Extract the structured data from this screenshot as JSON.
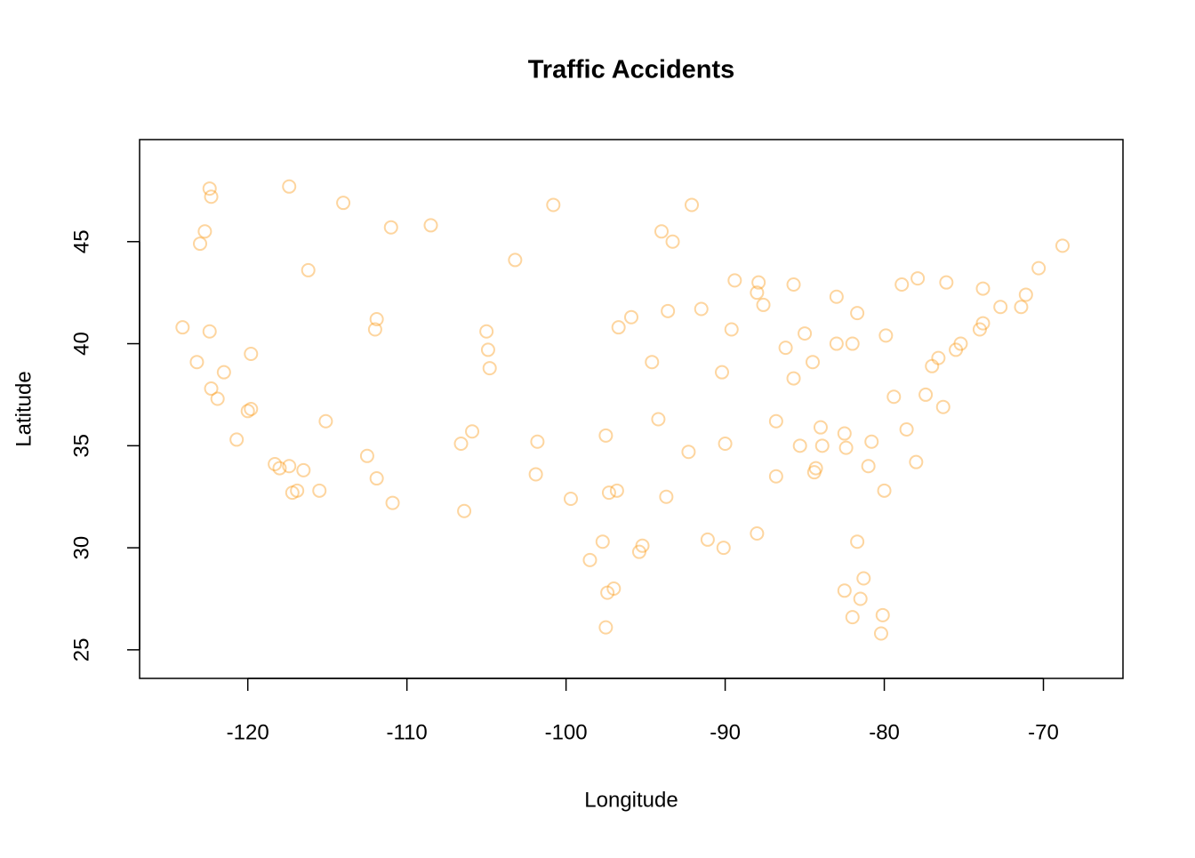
{
  "chart_data": {
    "type": "scatter",
    "title": "Traffic Accidents",
    "x_label": "Longitude",
    "y_label": "Latitude",
    "color": "rgba(250,150,15,0.4)",
    "xlim": [
      -126.8,
      -65.0
    ],
    "ylim": [
      23.6,
      50.0
    ],
    "xticks": [
      -120,
      -110,
      -100,
      -90,
      -80,
      -70
    ],
    "yticks": [
      25,
      30,
      35,
      40,
      45
    ],
    "x": [
      -122.4,
      -122.3,
      -122.7,
      -123.0,
      -122.3,
      -121.9,
      -121.5,
      -120.0,
      -119.8,
      -118.3,
      -118.0,
      -117.2,
      -117.4,
      -116.5,
      -124.1,
      -122.4,
      -123.2,
      -117.4,
      -119.8,
      -115.1,
      -111.9,
      -110.9,
      -112.0,
      -111.9,
      -116.2,
      -108.5,
      -106.6,
      -104.9,
      -104.8,
      -105.0,
      -106.4,
      -101.8,
      -97.5,
      -96.8,
      -97.3,
      -95.4,
      -95.2,
      -98.5,
      -97.7,
      -97.4,
      -97.5,
      -93.3,
      -94.6,
      -95.9,
      -96.7,
      -90.2,
      -87.6,
      -88.0,
      -87.9,
      -86.2,
      -84.5,
      -83.0,
      -81.7,
      -83.0,
      -85.7,
      -84.4,
      -84.3,
      -86.8,
      -86.8,
      -90.0,
      -90.1,
      -91.1,
      -88.0,
      -85.7,
      -80.8,
      -78.6,
      -80.0,
      -81.0,
      -82.4,
      -81.3,
      -82.5,
      -80.2,
      -80.1,
      -81.7,
      -77.0,
      -76.6,
      -75.2,
      -74.0,
      -73.8,
      -71.1,
      -72.7,
      -71.4,
      -79.9,
      -78.9,
      -76.1,
      -73.8,
      -70.3,
      -68.8,
      -77.4,
      -76.3,
      -79.4,
      -82.0,
      -85.0,
      -89.4,
      -92.1,
      -100.8,
      -103.2,
      -111.0,
      -114.0,
      -97.0,
      -93.7,
      -92.3,
      -94.2,
      -89.6,
      -82.5,
      -84.0,
      -83.9,
      -81.5,
      -82.0,
      -101.9,
      -99.7,
      -112.5,
      -105.9,
      -116.9,
      -120.7,
      -115.5,
      -93.6,
      -91.5,
      -94.0,
      -85.3,
      -78.0,
      -77.9,
      -75.5
    ],
    "values": [
      47.6,
      47.2,
      45.5,
      44.9,
      37.8,
      37.3,
      38.6,
      36.7,
      36.8,
      34.1,
      33.9,
      32.7,
      34.0,
      33.8,
      40.8,
      40.6,
      39.1,
      47.7,
      39.5,
      36.2,
      33.4,
      32.2,
      40.7,
      41.2,
      43.6,
      45.8,
      35.1,
      39.7,
      38.8,
      40.6,
      31.8,
      35.2,
      35.5,
      32.8,
      32.7,
      29.8,
      30.1,
      29.4,
      30.3,
      27.8,
      26.1,
      45.0,
      39.1,
      41.3,
      40.8,
      38.6,
      41.9,
      42.5,
      43.0,
      39.8,
      39.1,
      40.0,
      41.5,
      42.3,
      42.9,
      33.7,
      33.9,
      36.2,
      33.5,
      35.1,
      30.0,
      30.4,
      30.7,
      38.3,
      35.2,
      35.8,
      32.8,
      34.0,
      34.9,
      28.5,
      27.9,
      25.8,
      26.7,
      30.3,
      38.9,
      39.3,
      40.0,
      40.7,
      41.0,
      42.4,
      41.8,
      41.8,
      40.4,
      42.9,
      43.0,
      42.7,
      43.7,
      44.8,
      37.5,
      36.9,
      37.4,
      40.0,
      40.5,
      43.1,
      46.8,
      46.8,
      44.1,
      45.7,
      46.9,
      28.0,
      32.5,
      34.7,
      36.3,
      40.7,
      35.6,
      35.9,
      35.0,
      27.5,
      26.6,
      33.6,
      32.4,
      34.5,
      35.7,
      32.8,
      35.3,
      32.8,
      41.6,
      41.7,
      45.5,
      35.0,
      34.2,
      43.2,
      39.7
    ]
  }
}
